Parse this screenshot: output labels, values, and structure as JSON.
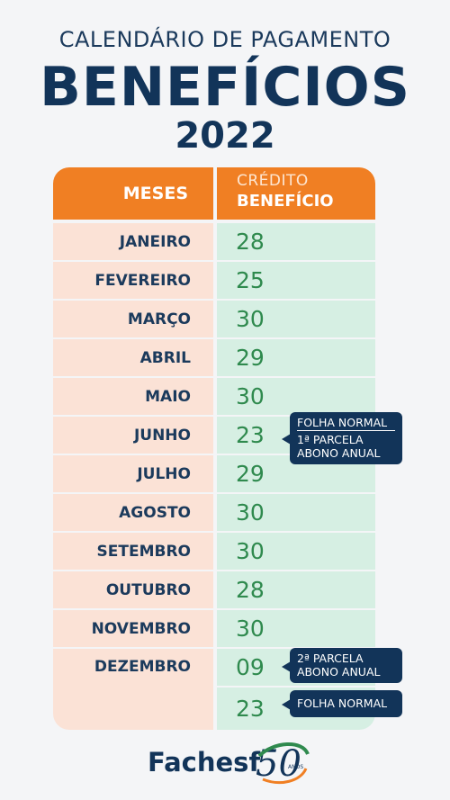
{
  "header": {
    "subtitle": "CALENDÁRIO DE PAGAMENTO",
    "title": "BENEFÍCIOS",
    "year": "2022"
  },
  "table": {
    "col_months": "MESES",
    "col_credit_line1": "CRÉDITO",
    "col_credit_line2": "BENEFÍCIO",
    "rows": [
      {
        "month": "JANEIRO",
        "day": "28"
      },
      {
        "month": "FEVEREIRO",
        "day": "25"
      },
      {
        "month": "MARÇO",
        "day": "30"
      },
      {
        "month": "ABRIL",
        "day": "29"
      },
      {
        "month": "MAIO",
        "day": "30"
      },
      {
        "month": "JUNHO",
        "day": "23"
      },
      {
        "month": "JULHO",
        "day": "29"
      },
      {
        "month": "AGOSTO",
        "day": "30"
      },
      {
        "month": "SETEMBRO",
        "day": "30"
      },
      {
        "month": "OUTUBRO",
        "day": "28"
      },
      {
        "month": "NOVEMBRO",
        "day": "30"
      },
      {
        "month": "DEZEMBRO",
        "day": "09"
      },
      {
        "month": "",
        "day": "23"
      }
    ]
  },
  "notes": {
    "june_line1": "FOLHA NORMAL",
    "june_line2": "1ª PARCELA",
    "june_line3": "ABONO ANUAL",
    "dec1_line1": "2ª PARCELA",
    "dec1_line2": "ABONO ANUAL",
    "dec2_line1": "FOLHA NORMAL"
  },
  "logo": {
    "name": "Fachesf",
    "number": "50",
    "anos": "ANOS"
  },
  "colors": {
    "navy": "#123459",
    "orange": "#f07f23",
    "peach": "#fbe2d6",
    "mint": "#d6efe3",
    "green_text": "#2f8a4e"
  }
}
